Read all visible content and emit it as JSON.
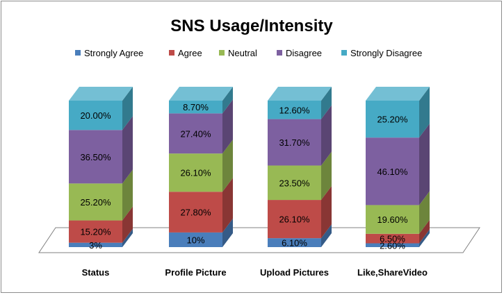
{
  "chart_data": {
    "type": "bar",
    "stacked": true,
    "three_d": true,
    "title": "SNS Usage/Intensity",
    "legend_position": "top",
    "categories": [
      "Status",
      "Profile Picture",
      "Upload Pictures",
      "Like,ShareVideo"
    ],
    "series": [
      {
        "name": "Strongly Agree",
        "color": "#4a7ebb",
        "values": [
          3,
          10,
          6.1,
          2.6
        ],
        "labels": [
          "3%",
          "10%",
          "6.10%",
          "2.60%"
        ]
      },
      {
        "name": "Agree",
        "color": "#be4b48",
        "values": [
          15.2,
          27.8,
          26.1,
          6.5
        ],
        "labels": [
          "15.20%",
          "27.80%",
          "26.10%",
          "6.50%"
        ]
      },
      {
        "name": "Neutral",
        "color": "#98b954",
        "values": [
          25.2,
          26.1,
          23.5,
          19.6
        ],
        "labels": [
          "25.20%",
          "26.10%",
          "23.50%",
          "19.60%"
        ]
      },
      {
        "name": "Disagree",
        "color": "#7d60a0",
        "values": [
          36.5,
          27.4,
          31.7,
          46.1
        ],
        "labels": [
          "36.50%",
          "27.40%",
          "31.70%",
          "46.10%"
        ]
      },
      {
        "name": "Strongly Disagree",
        "color": "#46aac5",
        "values": [
          20,
          8.7,
          12.6,
          25.2
        ],
        "labels": [
          "20.00%",
          "8.70%",
          "12.60%",
          "25.20%"
        ]
      }
    ]
  }
}
